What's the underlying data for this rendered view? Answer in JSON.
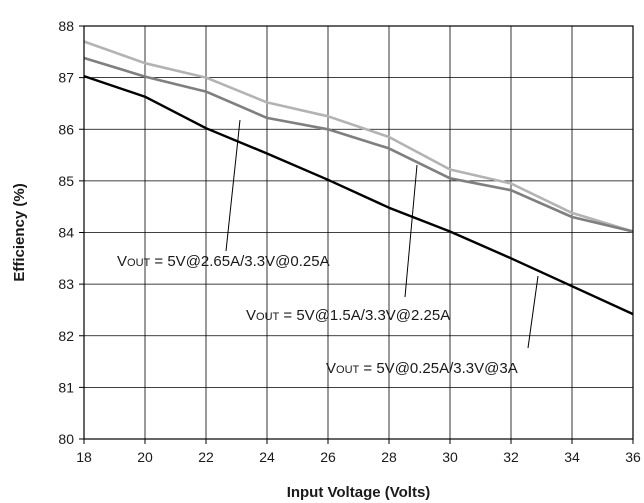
{
  "chart_data": {
    "type": "line",
    "xlabel": "Input Voltage (Volts)",
    "ylabel": "Efficiency (%)",
    "xlim": [
      18,
      36
    ],
    "ylim": [
      80,
      88
    ],
    "xticks": [
      18,
      20,
      22,
      24,
      26,
      28,
      30,
      32,
      34,
      36
    ],
    "yticks": [
      80,
      81,
      82,
      83,
      84,
      85,
      86,
      87,
      88
    ],
    "grid": true,
    "x": [
      18,
      20,
      22,
      24,
      26,
      28,
      30,
      32,
      34,
      36
    ],
    "series": [
      {
        "label_prefix": "V",
        "label_sub": "OUT",
        "label_rest": " = 5V@2.65A/3.3V@0.25A",
        "color": "#b3b3b3",
        "values": [
          87.7,
          87.28,
          87.0,
          86.52,
          86.25,
          85.85,
          85.22,
          84.95,
          84.38,
          84.02
        ]
      },
      {
        "label_prefix": "V",
        "label_sub": "OUT",
        "label_rest": " = 5V@1.5A/3.3V@2.25A",
        "color": "#7f7f7f",
        "values": [
          87.38,
          87.02,
          86.73,
          86.22,
          86.0,
          85.63,
          85.05,
          84.82,
          84.3,
          84.02
        ]
      },
      {
        "label_prefix": "V",
        "label_sub": "OUT",
        "label_rest": " = 5V@0.25A/3.3V@3A",
        "color": "#000000",
        "values": [
          87.03,
          86.63,
          86.02,
          85.53,
          85.02,
          84.48,
          84.02,
          83.5,
          82.96,
          82.42
        ]
      }
    ]
  }
}
